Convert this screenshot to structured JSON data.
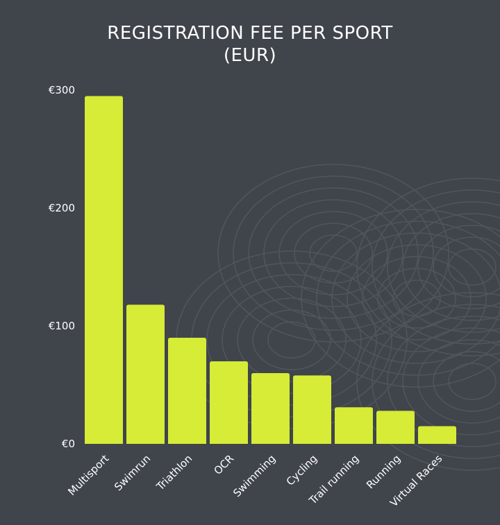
{
  "chart_data": {
    "type": "bar",
    "title_line1": "REGISTRATION FEE PER SPORT",
    "title_line2": "(EUR)",
    "categories": [
      "Multisport",
      "Swimrun",
      "Triathlon",
      "OCR",
      "Swimming",
      "Cycling",
      "Trail running",
      "Running",
      "Virtual Races"
    ],
    "values": [
      295,
      118,
      90,
      70,
      60,
      58,
      31,
      28,
      15
    ],
    "yticks": [
      0,
      100,
      200,
      300
    ],
    "ytick_labels": [
      "€0",
      "€100",
      "€200",
      "€300"
    ],
    "ylim": [
      0,
      300
    ],
    "grid": false,
    "legend": "none",
    "colors": {
      "background": "#40444b",
      "bar": "#d6ec36",
      "contours": "#565a61"
    }
  }
}
